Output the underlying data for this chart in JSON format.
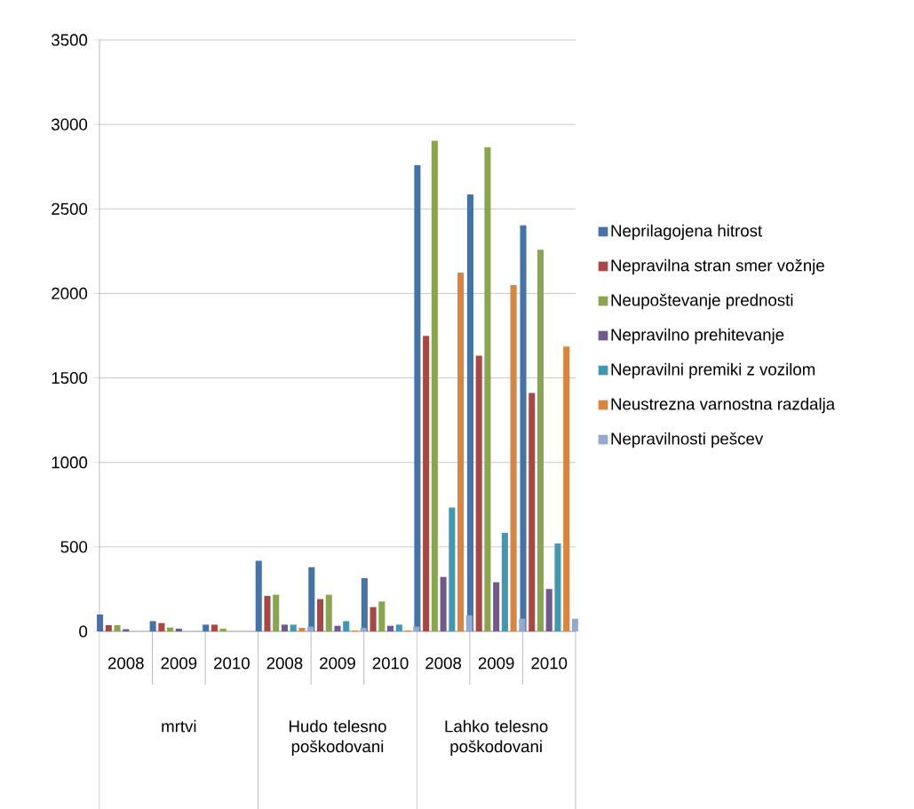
{
  "chart_data": {
    "type": "bar",
    "categories": [
      "2008",
      "2009",
      "2010",
      "2008",
      "2009",
      "2010",
      "2008",
      "2009",
      "2010"
    ],
    "annotations": [
      "mrtvi",
      "Hudo telesno poškodovani",
      "Lahko telesno poškodovani"
    ],
    "series": [
      {
        "name": "Neprilagojena hitrost",
        "color": "#4572a7",
        "values": [
          100,
          61,
          40,
          418,
          380,
          315,
          2759,
          2585,
          2403
        ]
      },
      {
        "name": "Nepravilna stran smer vožnje",
        "color": "#aa4643",
        "values": [
          37,
          49,
          40,
          210,
          191,
          144,
          1749,
          1632,
          1411
        ]
      },
      {
        "name": "Neupoštevanje prednosti",
        "color": "#89a54e",
        "values": [
          37,
          23,
          16,
          217,
          217,
          177,
          2903,
          2866,
          2259
        ]
      },
      {
        "name": "Nepravilno prehitevanje",
        "color": "#71588f",
        "values": [
          13,
          16,
          0,
          40,
          33,
          33,
          322,
          291,
          251
        ]
      },
      {
        "name": "Nepravilni premiki z vozilom",
        "color": "#4198af",
        "values": [
          0,
          0,
          0,
          40,
          61,
          40,
          733,
          583,
          520
        ]
      },
      {
        "name": "Neustrezna varnostna razdalja",
        "color": "#db843d",
        "values": [
          0,
          0,
          0,
          21,
          5,
          5,
          2123,
          2049,
          1686
        ]
      },
      {
        "name": "Nepravilnosti pešcev",
        "color": "#93a9cf",
        "values": [
          0,
          0,
          0,
          28,
          21,
          28,
          95,
          75,
          75
        ]
      }
    ],
    "ylim": [
      0,
      3500
    ],
    "yticks": [
      0,
      500,
      1000,
      1500,
      2000,
      2500,
      3000,
      3500
    ],
    "grid": "y",
    "legend": "right"
  }
}
